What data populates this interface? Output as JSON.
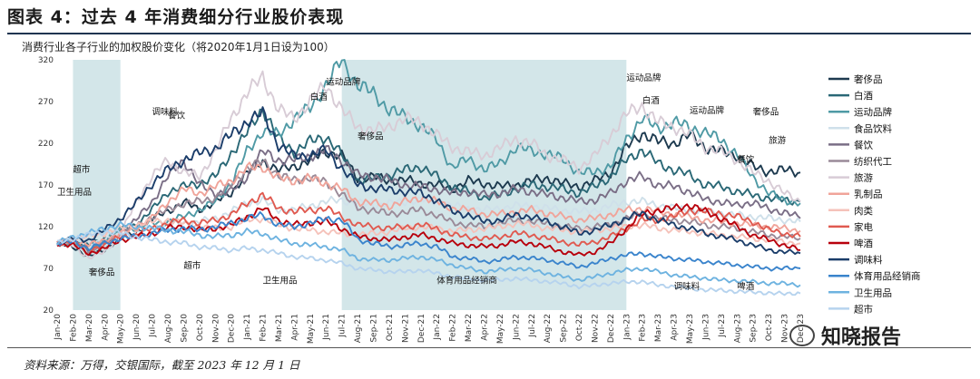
{
  "header": {
    "title": "图表 4：过去 4 年消费细分行业股价表现",
    "subtitle": "消费行业各子行业的加权股价变化（将2020年1月1日设为100）",
    "source": "资料来源：万得，交银国际，截至 2023 年 12 月 1 日",
    "watermark": "知晓报告"
  },
  "chart_data": {
    "type": "line",
    "title": "消费行业各子行业的加权股价变化（将2020年1月1日设为100）",
    "ylim": [
      20,
      320
    ],
    "yticks": [
      20,
      70,
      120,
      170,
      220,
      270,
      320
    ],
    "x": [
      "Jan-20",
      "Feb-20",
      "Mar-20",
      "Apr-20",
      "May-20",
      "Jun-20",
      "Jul-20",
      "Aug-20",
      "Sep-20",
      "Oct-20",
      "Nov-20",
      "Dec-20",
      "Jan-21",
      "Feb-21",
      "Mar-21",
      "Apr-21",
      "May-21",
      "Jun-21",
      "Jul-21",
      "Aug-21",
      "Sep-21",
      "Oct-21",
      "Nov-21",
      "Dec-21",
      "Jan-22",
      "Feb-22",
      "Mar-22",
      "Apr-22",
      "May-22",
      "Jun-22",
      "Jul-22",
      "Aug-22",
      "Sep-22",
      "Oct-22",
      "Nov-22",
      "Dec-22",
      "Jan-23",
      "Feb-23",
      "Mar-23",
      "Apr-23",
      "May-23",
      "Jun-23",
      "Jul-23",
      "Aug-23",
      "Sep-23",
      "Oct-23",
      "Nov-23",
      "Dec-23"
    ],
    "shaded_ranges": [
      [
        "Feb-20",
        "May-20"
      ],
      [
        "Jul-21",
        "Jan-23"
      ]
    ],
    "series": [
      {
        "name": "奢侈品",
        "color": "#1d3a4f",
        "values": [
          100,
          96,
          84,
          92,
          108,
          112,
          130,
          138,
          150,
          140,
          150,
          160,
          185,
          198,
          188,
          192,
          200,
          210,
          205,
          178,
          180,
          175,
          176,
          172,
          170,
          165,
          175,
          172,
          168,
          170,
          175,
          178,
          172,
          168,
          175,
          185,
          215,
          232,
          222,
          220,
          230,
          215,
          210,
          205,
          192,
          186,
          188,
          185
        ]
      },
      {
        "name": "白酒",
        "color": "#2a6876",
        "values": [
          100,
          104,
          98,
          106,
          116,
          122,
          140,
          162,
          168,
          172,
          180,
          208,
          232,
          262,
          225,
          210,
          222,
          228,
          206,
          175,
          178,
          182,
          188,
          192,
          180,
          168,
          162,
          155,
          158,
          165,
          170,
          168,
          165,
          160,
          168,
          180,
          200,
          212,
          196,
          188,
          182,
          170,
          168,
          162,
          158,
          154,
          152,
          150
        ]
      },
      {
        "name": "运动品牌",
        "color": "#4f9aa5",
        "values": [
          100,
          102,
          96,
          104,
          116,
          118,
          124,
          126,
          132,
          140,
          150,
          172,
          210,
          235,
          230,
          250,
          262,
          290,
          320,
          290,
          280,
          260,
          252,
          240,
          225,
          190,
          202,
          188,
          196,
          214,
          212,
          206,
          202,
          184,
          186,
          192,
          225,
          250,
          238,
          245,
          240,
          232,
          225,
          205,
          180,
          160,
          152,
          148
        ]
      },
      {
        "name": "食品饮料",
        "color": "#cfe0ea",
        "values": [
          100,
          102,
          100,
          104,
          110,
          112,
          120,
          122,
          124,
          126,
          130,
          138,
          148,
          152,
          140,
          140,
          145,
          150,
          152,
          148,
          146,
          148,
          150,
          152,
          150,
          145,
          142,
          140,
          142,
          145,
          145,
          142,
          140,
          138,
          140,
          145,
          150,
          150,
          146,
          142,
          140,
          138,
          136,
          134,
          132,
          130,
          128,
          126
        ]
      },
      {
        "name": "餐饮",
        "color": "#7a6e86",
        "values": [
          100,
          102,
          92,
          100,
          112,
          128,
          150,
          180,
          200,
          170,
          160,
          162,
          180,
          210,
          200,
          200,
          205,
          212,
          200,
          182,
          180,
          176,
          170,
          168,
          165,
          160,
          162,
          158,
          160,
          165,
          162,
          158,
          155,
          150,
          152,
          160,
          175,
          180,
          170,
          168,
          162,
          152,
          150,
          145,
          150,
          140,
          138,
          130
        ]
      },
      {
        "name": "纺织代工",
        "color": "#9a8a98",
        "values": [
          100,
          100,
          90,
          100,
          110,
          120,
          132,
          140,
          148,
          150,
          155,
          170,
          190,
          198,
          182,
          175,
          180,
          172,
          160,
          142,
          140,
          135,
          138,
          140,
          134,
          125,
          122,
          120,
          124,
          128,
          126,
          124,
          120,
          118,
          120,
          122,
          130,
          135,
          130,
          128,
          126,
          122,
          120,
          118,
          114,
          110,
          108,
          106
        ]
      },
      {
        "name": "旅游",
        "color": "#d8ccd6",
        "values": [
          100,
          98,
          82,
          90,
          110,
          150,
          180,
          200,
          185,
          180,
          210,
          250,
          280,
          300,
          260,
          250,
          270,
          290,
          260,
          240,
          235,
          240,
          250,
          245,
          230,
          215,
          210,
          205,
          215,
          225,
          220,
          205,
          200,
          190,
          205,
          230,
          255,
          265,
          245,
          240,
          230,
          215,
          210,
          200,
          185,
          175,
          160,
          150
        ]
      },
      {
        "name": "乳制品",
        "color": "#f0a49a",
        "values": [
          100,
          104,
          98,
          104,
          112,
          118,
          130,
          150,
          165,
          160,
          168,
          175,
          190,
          192,
          178,
          175,
          178,
          172,
          165,
          150,
          148,
          145,
          150,
          155,
          150,
          142,
          140,
          135,
          135,
          138,
          140,
          136,
          132,
          128,
          130,
          135,
          140,
          142,
          138,
          135,
          132,
          128,
          126,
          124,
          122,
          120,
          118,
          115
        ]
      },
      {
        "name": "肉类",
        "color": "#f5c2ba",
        "values": [
          100,
          105,
          108,
          112,
          118,
          122,
          126,
          128,
          124,
          120,
          118,
          120,
          128,
          130,
          122,
          118,
          116,
          114,
          112,
          110,
          112,
          114,
          118,
          120,
          118,
          115,
          116,
          118,
          120,
          124,
          122,
          118,
          116,
          114,
          116,
          118,
          120,
          122,
          118,
          116,
          114,
          112,
          110,
          108,
          106,
          104,
          102,
          100
        ]
      },
      {
        "name": "家电",
        "color": "#e05a50",
        "values": [
          100,
          102,
          92,
          98,
          108,
          110,
          118,
          124,
          128,
          124,
          128,
          134,
          148,
          158,
          142,
          138,
          140,
          142,
          132,
          122,
          120,
          118,
          120,
          122,
          118,
          110,
          108,
          105,
          108,
          112,
          110,
          106,
          102,
          98,
          102,
          108,
          118,
          128,
          128,
          132,
          140,
          138,
          136,
          132,
          126,
          116,
          112,
          108
        ]
      },
      {
        "name": "啤酒",
        "color": "#b8000c",
        "values": [
          100,
          98,
          88,
          94,
          104,
          108,
          112,
          118,
          120,
          116,
          118,
          122,
          132,
          142,
          128,
          122,
          125,
          126,
          118,
          108,
          106,
          104,
          108,
          110,
          106,
          100,
          98,
          96,
          98,
          102,
          100,
          95,
          90,
          86,
          90,
          100,
          118,
          135,
          140,
          142,
          146,
          138,
          130,
          120,
          110,
          104,
          98,
          92
        ]
      },
      {
        "name": "调味料",
        "color": "#1b3d6a",
        "values": [
          100,
          106,
          104,
          116,
          130,
          148,
          172,
          188,
          200,
          208,
          214,
          230,
          246,
          256,
          218,
          204,
          206,
          212,
          190,
          170,
          166,
          164,
          162,
          160,
          152,
          138,
          134,
          126,
          128,
          134,
          132,
          126,
          120,
          112,
          116,
          122,
          130,
          136,
          128,
          122,
          118,
          112,
          108,
          104,
          98,
          92,
          90,
          88
        ]
      },
      {
        "name": "体育用品经销商",
        "color": "#3a84cc",
        "values": [
          100,
          102,
          94,
          100,
          106,
          108,
          112,
          116,
          118,
          116,
          120,
          124,
          130,
          134,
          122,
          120,
          124,
          130,
          128,
          105,
          100,
          96,
          98,
          100,
          96,
          84,
          82,
          78,
          80,
          84,
          82,
          80,
          76,
          72,
          76,
          82,
          86,
          88,
          84,
          82,
          80,
          78,
          76,
          74,
          72,
          70,
          70,
          70
        ]
      },
      {
        "name": "卫生用品",
        "color": "#6eb3e0",
        "values": [
          100,
          108,
          112,
          118,
          122,
          120,
          118,
          116,
          114,
          110,
          108,
          110,
          114,
          112,
          104,
          100,
          98,
          96,
          92,
          82,
          80,
          80,
          82,
          84,
          80,
          74,
          70,
          66,
          68,
          70,
          68,
          64,
          60,
          56,
          60,
          64,
          68,
          70,
          66,
          62,
          60,
          58,
          56,
          55,
          54,
          52,
          52,
          50
        ]
      },
      {
        "name": "超市",
        "color": "#b6d3ee",
        "values": [
          100,
          106,
          110,
          114,
          112,
          108,
          104,
          102,
          100,
          96,
          94,
          92,
          94,
          92,
          88,
          84,
          82,
          80,
          76,
          70,
          68,
          66,
          66,
          68,
          64,
          60,
          58,
          56,
          56,
          58,
          56,
          54,
          52,
          48,
          50,
          52,
          54,
          54,
          50,
          48,
          46,
          44,
          44,
          42,
          42,
          40,
          40,
          40
        ]
      }
    ],
    "annotations": [
      {
        "text": "运动品牌",
        "x": "Jun-21",
        "y": 290
      },
      {
        "text": "白酒",
        "x": "May-21",
        "y": 272
      },
      {
        "text": "调味料",
        "x": "Jul-20",
        "y": 254
      },
      {
        "text": "餐饮",
        "x": "Aug-20",
        "y": 250
      },
      {
        "text": "奢侈品",
        "x": "Aug-21",
        "y": 225
      },
      {
        "text": "超市",
        "x": "Feb-20",
        "y": 185
      },
      {
        "text": "卫生用品",
        "x": "Jan-20",
        "y": 158
      },
      {
        "text": "超市",
        "x": "Sep-20",
        "y": 70
      },
      {
        "text": "奢侈品",
        "x": "Mar-20",
        "y": 62
      },
      {
        "text": "卫生用品",
        "x": "Feb-21",
        "y": 52
      },
      {
        "text": "体育用品经销商",
        "x": "Jan-22",
        "y": 52
      },
      {
        "text": "运动品牌",
        "x": "Jan-23",
        "y": 295
      },
      {
        "text": "白酒",
        "x": "Feb-23",
        "y": 268
      },
      {
        "text": "运动品牌",
        "x": "May-23",
        "y": 256
      },
      {
        "text": "奢侈品",
        "x": "Sep-23",
        "y": 254
      },
      {
        "text": "旅游",
        "x": "Oct-23",
        "y": 220
      },
      {
        "text": "餐饮",
        "x": "Aug-23",
        "y": 197
      },
      {
        "text": "调味料",
        "x": "Apr-23",
        "y": 45
      },
      {
        "text": "啤酒",
        "x": "Aug-23",
        "y": 45
      }
    ]
  }
}
